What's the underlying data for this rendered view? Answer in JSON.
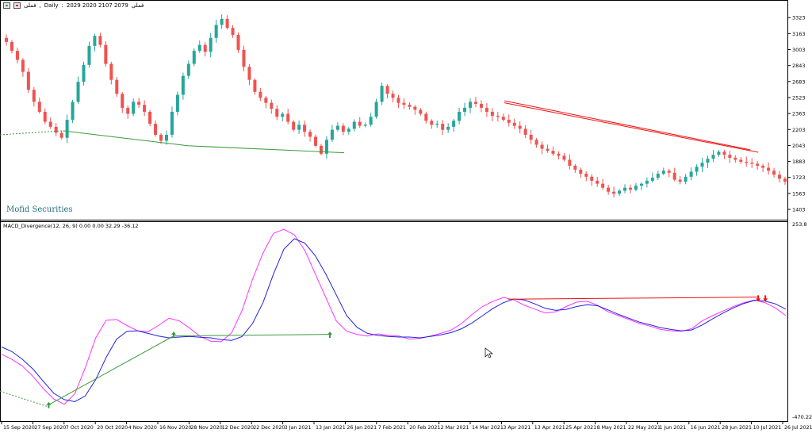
{
  "header": {
    "symbol": "فملی",
    "timeframe": "Daily",
    "ohlc": "2029 2020 2107 2079",
    "trailing": "فملی"
  },
  "watermark": "Mofid Securities",
  "indicator": {
    "label": "MACD_Divergence(12, 26, 9) 0.00 0.00 32.29 -36.12"
  },
  "colors": {
    "bull": "#26a69a",
    "bear": "#ef5350",
    "macd": "#ff33ff",
    "signal": "#2222dd",
    "bull_div": "#3c9a3c",
    "bear_div": "#ee1111"
  },
  "chart_data": [
    {
      "type": "candlestick",
      "title": "",
      "xlabel": "",
      "ylabel": "",
      "ylim": [
        1300,
        3420
      ],
      "y_ticks": [
        3323,
        3163,
        3003,
        2843,
        2683,
        2523,
        2363,
        2203,
        2043,
        1883,
        1723,
        1563,
        1403
      ],
      "x_ticks": [
        "15 Sep 2020",
        "27 Sep 2020",
        "7 Oct 2020",
        "20 Oct 2020",
        "4 Nov 2020",
        "16 Nov 2020",
        "28 Nov 2020",
        "12 Dec 2020",
        "22 Dec 2020",
        "3 Jan 2021",
        "13 Jan 2021",
        "26 Jan 2021",
        "7 Feb 2021",
        "20 Feb 2021",
        "2 Mar 2021",
        "14 Mar 2021",
        "3 Apr 2021",
        "13 Apr 2021",
        "25 Apr 2021",
        "8 May 2021",
        "22 May 2021",
        "1 Jun 2021",
        "16 Jun 2021",
        "28 Jun 2021",
        "10 Jul 2021",
        "26 Jul 2021"
      ],
      "close_series": [
        3080,
        2990,
        2900,
        2780,
        2600,
        2480,
        2380,
        2280,
        2230,
        2170,
        2120,
        2300,
        2480,
        2680,
        2850,
        3040,
        3140,
        3050,
        2860,
        2700,
        2560,
        2420,
        2360,
        2480,
        2450,
        2380,
        2260,
        2150,
        2090,
        2150,
        2380,
        2550,
        2740,
        2860,
        2990,
        3050,
        2980,
        3120,
        3250,
        3310,
        3220,
        3150,
        3000,
        2830,
        2700,
        2580,
        2520,
        2470,
        2410,
        2330,
        2360,
        2280,
        2200,
        2250,
        2180,
        2130,
        2040,
        1960,
        2100,
        2200,
        2240,
        2180,
        2210,
        2280,
        2240,
        2250,
        2330,
        2480,
        2640,
        2560,
        2520,
        2470,
        2450,
        2430,
        2400,
        2360,
        2290,
        2250,
        2260,
        2200,
        2230,
        2290,
        2380,
        2420,
        2480,
        2460,
        2420,
        2380,
        2340,
        2330,
        2300,
        2270,
        2240,
        2210,
        2150,
        2100,
        2050,
        2010,
        1990,
        1960,
        1940,
        1900,
        1840,
        1800,
        1760,
        1730,
        1690,
        1660,
        1620,
        1580,
        1560,
        1590,
        1620,
        1600,
        1640,
        1660,
        1690,
        1720,
        1760,
        1790,
        1770,
        1700,
        1680,
        1730,
        1780,
        1830,
        1870,
        1910,
        1950,
        1980,
        1950,
        1920,
        1900,
        1880,
        1870,
        1860,
        1840,
        1820,
        1790,
        1750,
        1710,
        1680
      ],
      "bull_divergence_line": {
        "from": "27 Sep 2020",
        "via": "16 Nov 2020",
        "to": "13 Jan 2021"
      },
      "bear_divergence_line": {
        "from": "14 Mar 2021",
        "to": "28 Jun 2021"
      }
    },
    {
      "type": "line",
      "title": "",
      "xlabel": "",
      "ylabel": "",
      "ylim": [
        -470.22,
        253.8
      ],
      "y_ticks": [
        253.8,
        -470.22
      ],
      "series": [
        {
          "values": [
            -238,
            -258,
            -284,
            -323,
            -370,
            -410,
            -430,
            -390,
            -290,
            -175,
            -108,
            -105,
            -128,
            -148,
            -152,
            -128,
            -100,
            -110,
            -138,
            -170,
            -188,
            -190,
            -156,
            -70,
            50,
            150,
            226,
            241,
            220,
            160,
            70,
            -20,
            -110,
            -150,
            -162,
            -168,
            -160,
            -166,
            -168,
            -180,
            -178,
            -168,
            -158,
            -145,
            -120,
            -85,
            -55,
            -35,
            -20,
            -30,
            -50,
            -65,
            -80,
            -75,
            -55,
            -38,
            -35,
            -50,
            -75,
            -90,
            -105,
            -120,
            -130,
            -143,
            -148,
            -150,
            -140,
            -110,
            -90,
            -72,
            -55,
            -40,
            -30,
            -40,
            -60,
            -90
          ]
        },
        {
          "values": [
            -210,
            -228,
            -258,
            -295,
            -342,
            -388,
            -412,
            -420,
            -398,
            -335,
            -250,
            -180,
            -150,
            -148,
            -158,
            -168,
            -175,
            -172,
            -170,
            -173,
            -175,
            -182,
            -185,
            -170,
            -120,
            -40,
            70,
            165,
            205,
            188,
            140,
            70,
            -10,
            -90,
            -135,
            -158,
            -166,
            -170,
            -172,
            -172,
            -175,
            -170,
            -164,
            -155,
            -140,
            -118,
            -90,
            -62,
            -40,
            -26,
            -30,
            -45,
            -62,
            -70,
            -66,
            -55,
            -48,
            -52,
            -68,
            -85,
            -100,
            -115,
            -125,
            -136,
            -143,
            -148,
            -145,
            -126,
            -102,
            -80,
            -60,
            -43,
            -32,
            -34,
            -45,
            -65
          ]
        }
      ],
      "divergence_markers": [
        {
          "date": "27 Sep 2020",
          "kind": "bullish"
        },
        {
          "date": "16 Nov 2020",
          "kind": "bullish"
        },
        {
          "date": "13 Jan 2021",
          "kind": "bullish"
        },
        {
          "date": "28 Jun 2021",
          "kind": "bearish"
        }
      ]
    }
  ]
}
